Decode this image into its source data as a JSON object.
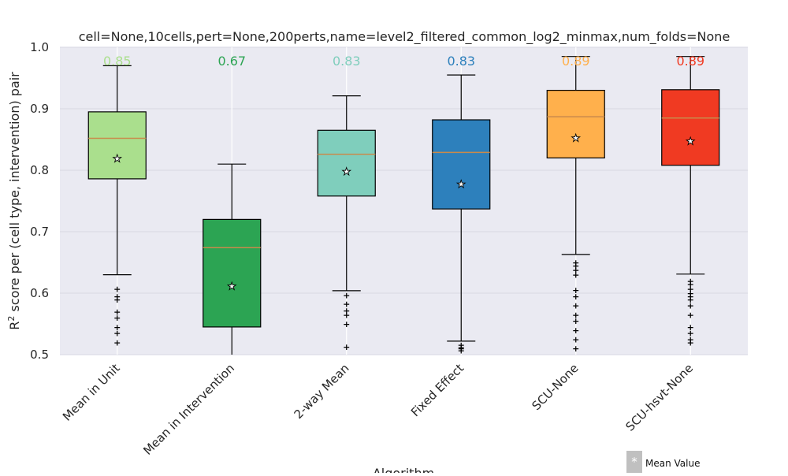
{
  "chart_data": {
    "type": "box",
    "title": "cell=None,10cells,pert=None,200perts,name=level2_filtered_common_log2_minmax,num_folds=None",
    "xlabel": "Algorithm",
    "ylabel": "R² score per (cell type, intervention) pair",
    "ylim": [
      0.5,
      1.0
    ],
    "yticks": [
      "0.5",
      "0.6",
      "0.7",
      "0.8",
      "0.9",
      "1.0"
    ],
    "grid": true,
    "legend": {
      "placement": "bottom-right",
      "label": "Mean Value",
      "marker": "*"
    },
    "series": [
      {
        "category": "Mean in Unit",
        "color": "#aadf8d",
        "whisker_low": 0.63,
        "q1": 0.786,
        "median": 0.852,
        "q3": 0.895,
        "whisker_high": 0.97,
        "mean": 0.82,
        "top_label": "0.85",
        "outliers": [
          0.52,
          0.535,
          0.545,
          0.56,
          0.57,
          0.59,
          0.595,
          0.607
        ]
      },
      {
        "category": "Mean in Intervention",
        "color": "#2ca453",
        "whisker_low": 0.5,
        "q1": 0.545,
        "median": 0.674,
        "q3": 0.72,
        "whisker_high": 0.81,
        "mean": 0.612,
        "top_label": "0.67",
        "outliers": []
      },
      {
        "category": "2-way Mean",
        "color": "#7fcebc",
        "whisker_low": 0.604,
        "q1": 0.758,
        "median": 0.826,
        "q3": 0.865,
        "whisker_high": 0.921,
        "mean": 0.799,
        "top_label": "0.83",
        "outliers": [
          0.513,
          0.55,
          0.565,
          0.572,
          0.583,
          0.597
        ]
      },
      {
        "category": "Fixed Effect",
        "color": "#2d80bc",
        "whisker_low": 0.522,
        "q1": 0.737,
        "median": 0.829,
        "q3": 0.882,
        "whisker_high": 0.955,
        "mean": 0.778,
        "top_label": "0.83",
        "outliers": [
          0.507,
          0.51,
          0.512,
          0.516
        ]
      },
      {
        "category": "SCU-None",
        "color": "#ffb04c",
        "whisker_low": 0.663,
        "q1": 0.82,
        "median": 0.887,
        "q3": 0.93,
        "whisker_high": 0.985,
        "mean": 0.853,
        "top_label": "0.89",
        "outliers": [
          0.51,
          0.525,
          0.54,
          0.555,
          0.565,
          0.58,
          0.595,
          0.605,
          0.63,
          0.638,
          0.645,
          0.65
        ]
      },
      {
        "category": "SCU-hsvt-None",
        "color": "#f03a22",
        "whisker_low": 0.631,
        "q1": 0.808,
        "median": 0.885,
        "q3": 0.931,
        "whisker_high": 0.985,
        "mean": 0.848,
        "top_label": "0.89",
        "outliers": [
          0.52,
          0.525,
          0.535,
          0.545,
          0.565,
          0.58,
          0.59,
          0.595,
          0.6,
          0.607,
          0.615,
          0.62
        ]
      }
    ]
  }
}
